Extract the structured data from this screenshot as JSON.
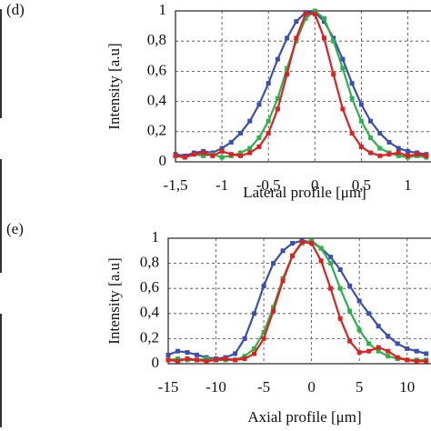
{
  "chart_data": [
    {
      "type": "line",
      "label": "(d)",
      "ylabel": "Intensity [a.u]",
      "xlabel": "Lateral profile [μm]",
      "x": [
        -1.5,
        -1.4,
        -1.3,
        -1.2,
        -1.1,
        -1.0,
        -0.9,
        -0.8,
        -0.7,
        -0.6,
        -0.5,
        -0.4,
        -0.3,
        -0.2,
        -0.1,
        0,
        0.1,
        0.2,
        0.3,
        0.4,
        0.5,
        0.6,
        0.7,
        0.8,
        0.9,
        1.0,
        1.1,
        1.2
      ],
      "series": [
        {
          "color": "#3a4fb4",
          "values": [
            0.05,
            0.04,
            0.06,
            0.07,
            0.06,
            0.09,
            0.13,
            0.19,
            0.27,
            0.38,
            0.52,
            0.68,
            0.82,
            0.93,
            0.99,
            0.99,
            0.93,
            0.82,
            0.68,
            0.52,
            0.38,
            0.27,
            0.19,
            0.13,
            0.09,
            0.07,
            0.06,
            0.05
          ]
        },
        {
          "color": "#2bb24a",
          "values": [
            0.04,
            0.03,
            0.05,
            0.04,
            0.05,
            0.03,
            0.04,
            0.06,
            0.09,
            0.16,
            0.27,
            0.42,
            0.62,
            0.8,
            0.95,
            1.0,
            0.95,
            0.8,
            0.62,
            0.42,
            0.27,
            0.16,
            0.09,
            0.06,
            0.04,
            0.03,
            0.04,
            0.03
          ]
        },
        {
          "color": "#e02020",
          "values": [
            0.04,
            0.03,
            0.05,
            0.06,
            0.04,
            0.07,
            0.05,
            0.04,
            0.06,
            0.1,
            0.19,
            0.35,
            0.58,
            0.82,
            0.98,
            0.98,
            0.82,
            0.58,
            0.35,
            0.19,
            0.1,
            0.06,
            0.04,
            0.05,
            0.06,
            0.04,
            0.05,
            0.04
          ]
        }
      ],
      "xlim": [
        -1.5,
        1.25
      ],
      "xticks": [
        {
          "value": -1.5,
          "label": "-1,5"
        },
        -1,
        {
          "value": -0.5,
          "label": "-0,5"
        },
        0,
        {
          "value": 0.5,
          "label": "0,5"
        },
        1
      ],
      "ylim": [
        0,
        1
      ],
      "yticks": [
        0,
        {
          "value": 0.2,
          "label": "0,2"
        },
        {
          "value": 0.4,
          "label": "0,4"
        },
        {
          "value": 0.6,
          "label": "0,6"
        },
        {
          "value": 0.8,
          "label": "0,8"
        },
        1
      ],
      "grid": true
    },
    {
      "type": "line",
      "label": "(e)",
      "ylabel": "Intensity [a.u]",
      "xlabel": "Axial profile [μm]",
      "x": [
        -15,
        -14,
        -13,
        -12,
        -11,
        -10,
        -9,
        -8,
        -7,
        -6,
        -5,
        -4,
        -3,
        -2,
        -1,
        0,
        1,
        2,
        3,
        4,
        5,
        6,
        7,
        8,
        9,
        10,
        11,
        12
      ],
      "series": [
        {
          "color": "#3a4fb4",
          "values": [
            0.07,
            0.1,
            0.09,
            0.07,
            0.05,
            0.04,
            0.05,
            0.08,
            0.2,
            0.4,
            0.62,
            0.8,
            0.9,
            0.96,
            0.98,
            0.97,
            0.92,
            0.85,
            0.75,
            0.62,
            0.5,
            0.4,
            0.3,
            0.22,
            0.16,
            0.12,
            0.1,
            0.08
          ]
        },
        {
          "color": "#2bb24a",
          "values": [
            0.03,
            0.04,
            0.03,
            0.03,
            0.04,
            0.03,
            0.03,
            0.03,
            0.06,
            0.12,
            0.25,
            0.45,
            0.68,
            0.86,
            0.96,
            0.98,
            0.92,
            0.8,
            0.6,
            0.42,
            0.27,
            0.16,
            0.1,
            0.06,
            0.04,
            0.03,
            0.03,
            0.03
          ]
        },
        {
          "color": "#e02020",
          "values": [
            0.03,
            0.02,
            0.04,
            0.03,
            0.02,
            0.03,
            0.04,
            0.03,
            0.04,
            0.08,
            0.2,
            0.42,
            0.66,
            0.86,
            0.97,
            0.96,
            0.82,
            0.6,
            0.36,
            0.18,
            0.09,
            0.1,
            0.13,
            0.1,
            0.05,
            0.03,
            0.02,
            0.02
          ]
        }
      ],
      "xlim": [
        -15,
        12.5
      ],
      "xticks": [
        -15,
        -10,
        -5,
        0,
        5,
        10
      ],
      "ylim": [
        0,
        1
      ],
      "yticks": [
        0,
        {
          "value": 0.2,
          "label": "0,2"
        },
        {
          "value": 0.4,
          "label": "0,4"
        },
        {
          "value": 0.6,
          "label": "0,6"
        },
        {
          "value": 0.8,
          "label": "0,8"
        },
        1
      ],
      "grid": true
    }
  ]
}
